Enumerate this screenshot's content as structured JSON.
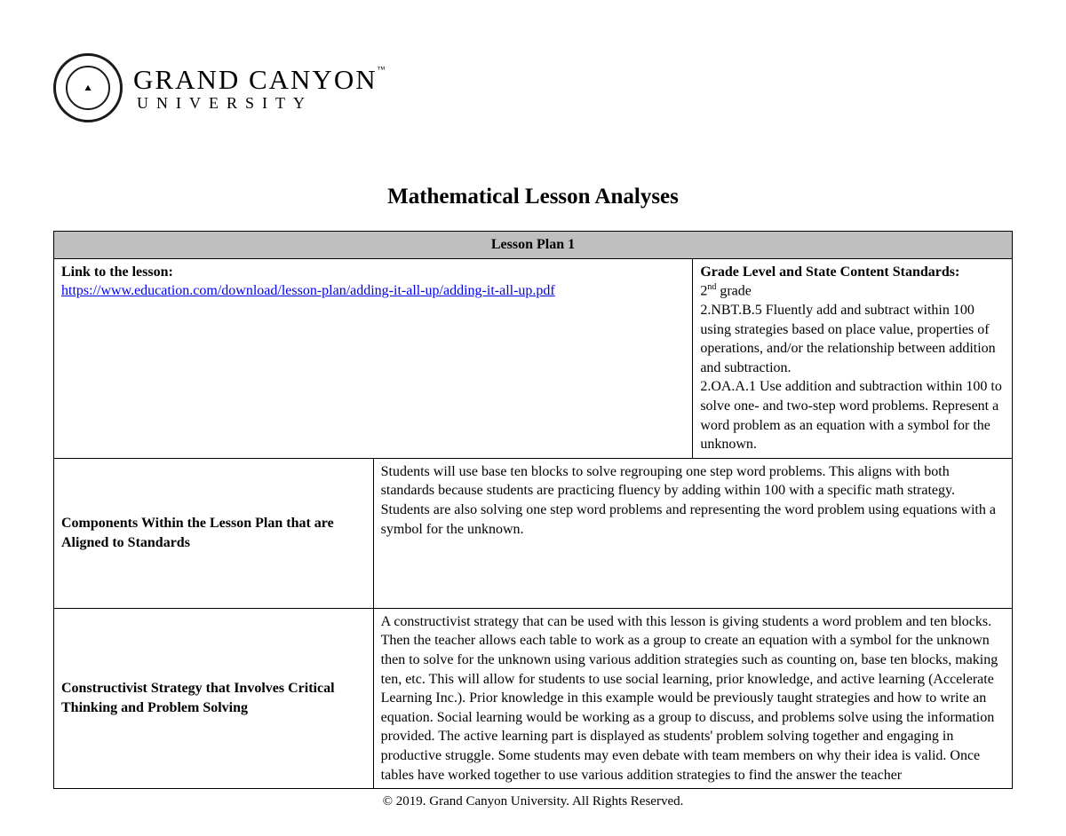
{
  "logo": {
    "seal_glyph": "⛰",
    "name": "GRAND CANYON",
    "sub": "UNIVERSITY",
    "tm": "™"
  },
  "doc_title": "Mathematical Lesson Analyses",
  "table": {
    "header": "Lesson Plan 1",
    "link_label": "Link to the lesson:",
    "link_url": "https://www.education.com/download/lesson-plan/adding-it-all-up/adding-it-all-up.pdf",
    "grade_label": "Grade Level and State Content Standards:",
    "grade_line1_a": "2",
    "grade_line1_sup": "nd",
    "grade_line1_b": " grade",
    "grade_std1": "2.NBT.B.5 Fluently add and subtract within 100 using strategies based on place value, properties of operations, and/or the relationship between addition and subtraction.",
    "grade_std2": "2.OA.A.1 Use addition and subtraction within 100 to solve one- and two-step word problems. Represent a word problem as an equation with a symbol for the unknown.",
    "row2_label": "Components Within the Lesson Plan that are Aligned to Standards",
    "row2_body": "Students will use base ten blocks to solve regrouping one step word problems. This aligns with both standards because students are practicing fluency by adding within 100 with a specific math strategy. Students are also solving one step word problems and representing the word problem using equations with a symbol for the unknown.",
    "row3_label": "Constructivist Strategy that Involves Critical Thinking and Problem Solving",
    "row3_body": "A constructivist strategy that can be used with this lesson is giving students a word problem and ten blocks. Then the teacher allows each table to work as a group to create an equation with a symbol for the unknown then to solve for the unknown using various addition strategies such as counting on, base ten blocks, making ten, etc. This will allow for students to use social learning, prior knowledge, and active learning (Accelerate Learning Inc.). Prior knowledge in this example would be previously taught strategies and how to write an equation. Social learning would be working as a group to discuss, and problems solve using the information provided. The active learning part is displayed as students' problem solving together and engaging in productive struggle. Some students may even debate with team members on why their idea is valid. Once tables have worked together to use various addition strategies to find the answer the teacher"
  },
  "footer": "© 2019. Grand Canyon University. All Rights Reserved.",
  "colors": {
    "header_bg": "#bfbfbf",
    "border": "#000000",
    "link": "#0000ee",
    "text": "#000000",
    "background": "#ffffff"
  },
  "typography": {
    "body_font": "Times New Roman",
    "doc_title_size_pt": 19,
    "table_header_size_pt": 17,
    "body_size_pt": 12
  }
}
